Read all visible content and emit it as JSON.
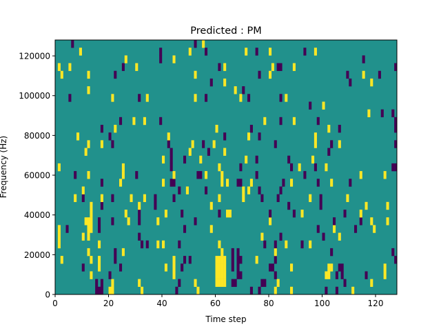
{
  "chart_data": {
    "type": "heatmap",
    "title": "Predicted : PM",
    "xlabel": "Time step",
    "ylabel": "Frequency (Hz)",
    "xlim": [
      0,
      128
    ],
    "ylim": [
      0,
      128000
    ],
    "n_time_steps": 128,
    "n_freq_bins": 33,
    "xticks": [
      0,
      20,
      40,
      60,
      80,
      100,
      120
    ],
    "yticks": [
      0,
      20000,
      40000,
      60000,
      80000,
      100000,
      120000
    ],
    "xtick_labels": [
      "0",
      "20",
      "40",
      "60",
      "80",
      "100",
      "120"
    ],
    "ytick_labels": [
      "0",
      "20000",
      "40000",
      "60000",
      "80000",
      "100000",
      "120000"
    ],
    "colors": {
      "zero": "#21918c",
      "positive": "#fde725",
      "negative": "#440154"
    },
    "values_legend": {
      "background": 0,
      "positive": 1,
      "negative": -1
    },
    "rows_by_freq_bin": {
      "32": {
        "pos": [
          55
        ],
        "neg": [
          6,
          52
        ]
      },
      "31": {
        "pos": [
          9,
          50,
          71,
          80,
          97
        ],
        "neg": [
          39,
          56,
          75,
          93
        ]
      },
      "30": {
        "pos": [
          26,
          44
        ],
        "neg": [
          39,
          115
        ]
      },
      "29": {
        "pos": [
          1,
          5,
          30,
          63,
          81,
          89
        ],
        "neg": [
          25,
          61,
          83,
          84,
          127
        ]
      },
      "28": {
        "pos": [
          2,
          12,
          52,
          80,
          115
        ],
        "neg": [
          22,
          76,
          109,
          121
        ]
      },
      "27": {
        "pos": [
          63,
          118
        ],
        "neg": [
          58,
          110
        ]
      },
      "26": {
        "pos": [
          12,
          67
        ],
        "neg": [
          70
        ]
      },
      "25": {
        "pos": [
          21,
          34,
          52,
          69,
          86
        ],
        "neg": [
          5,
          31,
          56,
          72,
          84
        ]
      },
      "24": {
        "pos": [
          100
        ],
        "neg": [
          95
        ]
      },
      "23": {
        "pos": [
          117
        ],
        "neg": [
          122,
          126
        ]
      },
      "22": {
        "pos": [
          29,
          33,
          78,
          89
        ],
        "neg": [
          24,
          39,
          84,
          98,
          127
        ]
      },
      "21": {
        "pos": [
          22,
          60,
          102
        ],
        "neg": [
          17,
          73,
          106,
          127
        ]
      },
      "20": {
        "pos": [
          8,
          42,
          72,
          97
        ],
        "neg": [
          20,
          63,
          76
        ]
      },
      "19": {
        "pos": [
          12,
          17,
          51,
          59,
          97,
          106
        ],
        "neg": [
          21,
          42,
          55,
          82,
          103,
          127
        ]
      },
      "18": {
        "pos": [
          11,
          50,
          63
        ],
        "neg": [
          43,
          57,
          102
        ]
      },
      "17": {
        "pos": [
          40,
          54,
          71,
          96
        ],
        "neg": [
          43,
          48,
          75,
          87
        ]
      },
      "16": {
        "pos": [
          1,
          25,
          61,
          91,
          101
        ],
        "neg": [
          43,
          69,
          88,
          97,
          126,
          127
        ]
      },
      "15": {
        "pos": [
          12,
          25,
          44,
          56,
          62,
          114,
          123
        ],
        "neg": [
          7,
          30,
          53,
          54,
          75,
          93
        ]
      },
      "14": {
        "pos": [
          24,
          40,
          62,
          64,
          73,
          88,
          103
        ],
        "neg": [
          17,
          43,
          44,
          68,
          69,
          85,
          98,
          110
        ]
      },
      "13": {
        "pos": [
          10,
          49,
          70,
          72
        ],
        "neg": [
          46,
          56,
          76,
          84
        ]
      },
      "12": {
        "pos": [
          7,
          17,
          28,
          33,
          61,
          70,
          95,
          109
        ],
        "neg": [
          10,
          21,
          37,
          44,
          77,
          83,
          99
        ]
      },
      "11": {
        "pos": [
          13,
          31,
          58,
          116,
          124
        ],
        "neg": [
          17,
          37,
          87,
          99
        ]
      },
      "10": {
        "pos": [
          13,
          26,
          41,
          64,
          65,
          92,
          114
        ],
        "neg": [
          31,
          47,
          61,
          80,
          89,
          108
        ]
      },
      "9": {
        "pos": [
          11,
          12,
          13,
          27,
          38,
          80,
          118,
          124
        ],
        "neg": [
          16,
          21,
          31,
          52,
          104,
          114
        ]
      },
      "8": {
        "pos": [
          1,
          12,
          13,
          58,
          104,
          119
        ],
        "neg": [
          4,
          16,
          48,
          98,
          112
        ]
      },
      "7": {
        "pos": [
          1,
          10,
          12,
          77,
          106
        ],
        "neg": [
          31,
          84,
          100
        ]
      },
      "6": {
        "pos": [
          1,
          16,
          38,
          40,
          61,
          86,
          95
        ],
        "neg": [
          32,
          34,
          46,
          78,
          82,
          92
        ]
      },
      "5": {
        "pos": [
          12,
          25,
          62,
          82
        ],
        "neg": [
          22,
          66,
          68,
          103,
          126
        ]
      },
      "4": {
        "pos": [
          2,
          13,
          16,
          44,
          60,
          61,
          62,
          63,
          75
        ],
        "neg": [
          22,
          48,
          50,
          66,
          68,
          69,
          82,
          127
        ]
      },
      "3": {
        "pos": [
          16,
          41,
          44,
          60,
          61,
          62,
          63,
          88,
          102,
          103,
          123
        ],
        "neg": [
          10,
          24,
          47,
          66,
          68,
          80,
          81,
          106,
          107
        ]
      },
      "2": {
        "pos": [
          13,
          44,
          60,
          61,
          62,
          63,
          101,
          102,
          123
        ],
        "neg": [
          20,
          68,
          69,
          82,
          105,
          107,
          116
        ]
      },
      "1": {
        "pos": [
          21,
          31,
          52,
          60,
          61,
          62,
          63,
          83,
          118
        ],
        "neg": [
          15,
          17,
          46,
          66,
          67,
          77,
          78,
          108
        ]
      },
      "0": {
        "pos": [
          20,
          21,
          32,
          53,
          82,
          88,
          111
        ],
        "neg": [
          15,
          16,
          17,
          45,
          73,
          76,
          101,
          105
        ]
      }
    }
  }
}
